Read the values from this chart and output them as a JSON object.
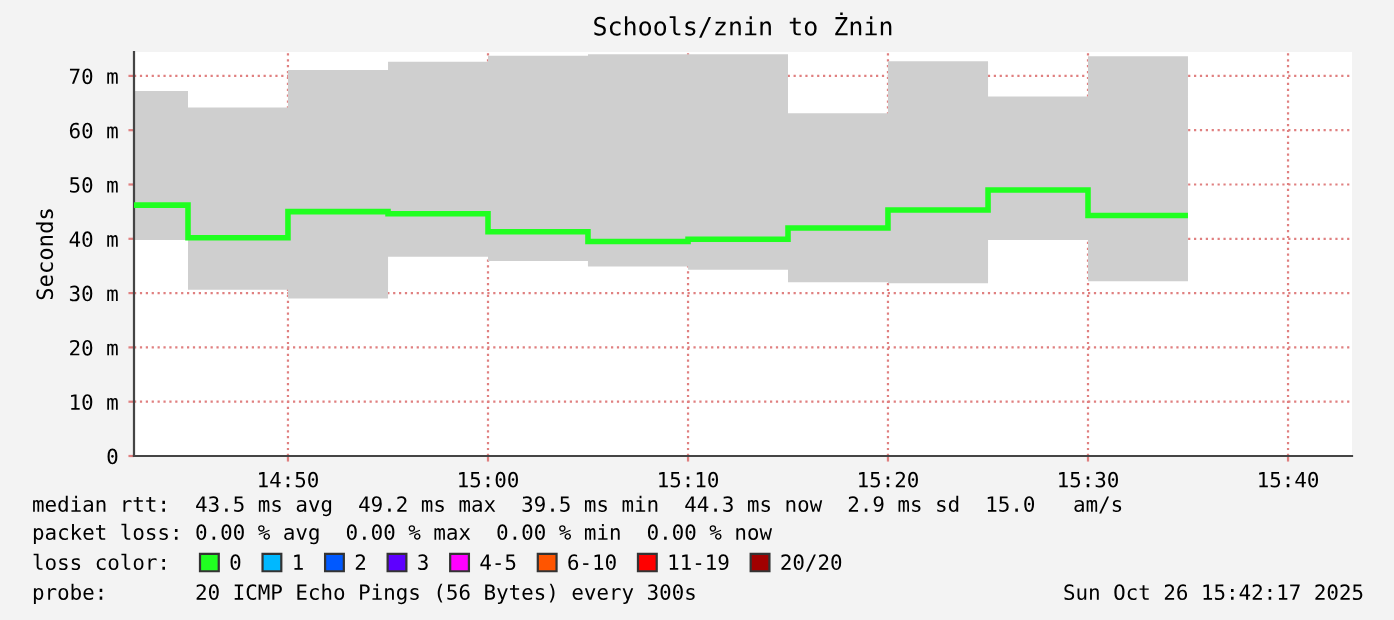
{
  "chart_data": {
    "type": "step",
    "title": "Schools/znin to Żnin",
    "ylabel": "Seconds",
    "x": [
      14.75,
      14.8333,
      14.9167,
      15.0,
      15.0833,
      15.1667,
      15.25,
      15.3333,
      15.4167,
      15.5,
      15.5833
    ],
    "series": [
      {
        "name": "0",
        "color": "#20ff20",
        "values": [
          46.2,
          40.2,
          45.0,
          44.6,
          41.3,
          39.5,
          39.9,
          42.0,
          45.3,
          49.0,
          44.3
        ],
        "lower": [
          39.8,
          30.6,
          29.0,
          36.7,
          35.9,
          34.9,
          34.3,
          32.0,
          31.8,
          39.8,
          32.2
        ],
        "upper": [
          67.2,
          64.2,
          71.1,
          72.6,
          73.7,
          74.0,
          74.0,
          63.1,
          72.7,
          66.2,
          73.6
        ]
      },
      {
        "name": "1",
        "color": "#00b8ff",
        "values": [
          null,
          null,
          null,
          null,
          null,
          null,
          null,
          null,
          null,
          null,
          null
        ]
      },
      {
        "name": "2",
        "color": "#0059ff",
        "values": [
          null,
          null,
          null,
          null,
          null,
          null,
          null,
          null,
          null,
          null,
          null
        ]
      },
      {
        "name": "3",
        "color": "#5e00ff",
        "values": [
          null,
          null,
          null,
          null,
          null,
          null,
          null,
          null,
          null,
          null,
          null
        ]
      },
      {
        "name": "4-5",
        "color": "#ff00ff",
        "values": [
          null,
          null,
          null,
          null,
          null,
          null,
          null,
          null,
          null,
          null,
          null
        ]
      },
      {
        "name": "6-10",
        "color": "#ff5500",
        "values": [
          null,
          null,
          null,
          null,
          null,
          null,
          null,
          null,
          null,
          null,
          null
        ]
      },
      {
        "name": "11-19",
        "color": "#ff0000",
        "values": [
          null,
          null,
          null,
          null,
          null,
          null,
          null,
          null,
          null,
          null,
          null
        ]
      },
      {
        "name": "20/20",
        "color": "#a10000",
        "values": [
          null,
          null,
          null,
          null,
          null,
          null,
          null,
          null,
          null,
          null,
          null
        ]
      }
    ],
    "legend_title": "loss color:",
    "legend": "bottom",
    "xlim": [
      14.705,
      15.72
    ],
    "xticks": [
      {
        "value": 14.8333,
        "label": "14:50"
      },
      {
        "value": 15.0,
        "label": "15:00"
      },
      {
        "value": 15.1667,
        "label": "15:10"
      },
      {
        "value": 15.3333,
        "label": "15:20"
      },
      {
        "value": 15.5,
        "label": "15:30"
      },
      {
        "value": 15.6667,
        "label": "15:40"
      }
    ],
    "ylim": [
      0,
      74.4
    ],
    "yticks": [
      0,
      {
        "value": 10,
        "label": "10 m"
      },
      {
        "value": 20,
        "label": "20 m"
      },
      {
        "value": 30,
        "label": "30 m"
      },
      {
        "value": 40,
        "label": "40 m"
      },
      {
        "value": 50,
        "label": "50 m"
      },
      {
        "value": 60,
        "label": "60 m"
      },
      {
        "value": 70,
        "label": "70 m"
      }
    ],
    "grid": true,
    "annotations": [
      "median rtt:  43.5 ms avg  49.2 ms max  39.5 ms min  44.3 ms now  2.9 ms sd  15.0   am/s",
      "packet loss: 0.00 % avg  0.00 % max  0.00 % min  0.00 % now",
      "probe:       20 ICMP Echo Pings (56 Bytes) every 300s",
      "Sun Oct 26 15:42:17 2025"
    ]
  }
}
